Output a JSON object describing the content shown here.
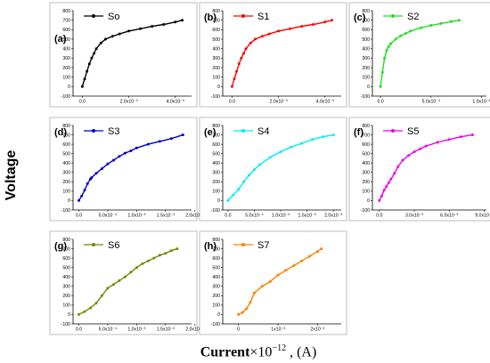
{
  "figure": {
    "ylabel": "Voltage",
    "xlabel_bold": "Current",
    "xlabel_rest": "×10",
    "xlabel_exp": "−12",
    "xlabel_unit": " , (A)"
  },
  "chart_data": [
    {
      "type": "line",
      "panel": "(a)",
      "series": [
        {
          "name": "So",
          "color": "#000000",
          "x": [
            0,
            0.0001,
            0.0002,
            0.0003,
            0.0004,
            0.0005,
            0.0006,
            0.0008,
            0.001,
            0.0013,
            0.0016,
            0.002,
            0.0025,
            0.003,
            0.0035,
            0.004,
            0.0043
          ],
          "y": [
            0,
            80,
            160,
            240,
            300,
            350,
            400,
            460,
            500,
            530,
            555,
            585,
            610,
            635,
            655,
            680,
            700
          ]
        }
      ],
      "xticks": [
        "0.0",
        "2.0x10⁻³",
        "4.0x10⁻³"
      ],
      "xtick_values": [
        0,
        0.002,
        0.004
      ],
      "xlim": [
        -0.0004,
        0.0047
      ],
      "yticks": [
        "-100",
        "0",
        "100",
        "200",
        "300",
        "400",
        "500",
        "600",
        "700",
        "800"
      ],
      "ylim": [
        -100,
        800
      ]
    },
    {
      "type": "line",
      "panel": "(b)",
      "series": [
        {
          "name": "S1",
          "color": "#ff0000",
          "x": [
            0,
            0.0001,
            0.0002,
            0.0003,
            0.0004,
            0.0005,
            0.0006,
            0.0008,
            0.001,
            0.0013,
            0.0016,
            0.002,
            0.0025,
            0.003,
            0.0035,
            0.004,
            0.0043
          ],
          "y": [
            0,
            80,
            160,
            240,
            300,
            350,
            400,
            460,
            500,
            530,
            555,
            585,
            610,
            635,
            655,
            680,
            700
          ]
        }
      ],
      "xticks": [
        "0.0",
        "2.0x10⁻³",
        "4.0x10⁻³"
      ],
      "xtick_values": [
        0,
        0.002,
        0.004
      ],
      "xlim": [
        -0.0004,
        0.0047
      ],
      "yticks": [
        "-100",
        "0",
        "100",
        "200",
        "300",
        "400",
        "500",
        "600",
        "700",
        "800"
      ],
      "ylim": [
        -100,
        800
      ]
    },
    {
      "type": "line",
      "panel": "(c)",
      "series": [
        {
          "name": "S2",
          "color": "#22dd22",
          "x": [
            0,
            0.0002,
            0.0004,
            0.0006,
            0.0008,
            0.001,
            0.0015,
            0.002,
            0.0025,
            0.003,
            0.004,
            0.005,
            0.006,
            0.007,
            0.0078
          ],
          "y": [
            0,
            150,
            300,
            380,
            420,
            450,
            500,
            535,
            560,
            585,
            620,
            645,
            665,
            685,
            700
          ]
        }
      ],
      "xticks": [
        "0.0",
        "5.0x10⁻³",
        "1.0x10⁻²"
      ],
      "xtick_values": [
        0,
        0.005,
        0.01
      ],
      "xlim": [
        -0.0008,
        0.0105
      ],
      "yticks": [
        "-100",
        "0",
        "100",
        "200",
        "300",
        "400",
        "500",
        "600",
        "700",
        "800"
      ],
      "ylim": [
        -100,
        800
      ]
    },
    {
      "type": "line",
      "panel": "(d)",
      "series": [
        {
          "name": "S3",
          "color": "#0000cc",
          "x": [
            0,
            5e-05,
            0.0001,
            0.00015,
            0.0002,
            0.00022,
            0.0003,
            0.0004,
            0.0005,
            0.0006,
            0.0007,
            0.0008,
            0.0009,
            0.001,
            0.0012,
            0.0014,
            0.0016,
            0.0018
          ],
          "y": [
            0,
            50,
            110,
            180,
            230,
            245,
            290,
            340,
            390,
            430,
            470,
            505,
            530,
            560,
            600,
            630,
            660,
            700
          ]
        }
      ],
      "xticks": [
        "0.0",
        "5.0x10⁻⁴",
        "1.0x10⁻³",
        "1.5x10⁻³",
        "2.0x10⁻³"
      ],
      "xtick_values": [
        0,
        0.0005,
        0.001,
        0.0015,
        0.002
      ],
      "xlim": [
        -0.0001,
        0.00195
      ],
      "yticks": [
        "-100",
        "0",
        "100",
        "200",
        "300",
        "400",
        "500",
        "600",
        "700",
        "800"
      ],
      "ylim": [
        -100,
        800
      ]
    },
    {
      "type": "line",
      "panel": "(e)",
      "series": [
        {
          "name": "S4",
          "color": "#00eeee",
          "x": [
            0,
            0.0001,
            0.0002,
            0.0003,
            0.0004,
            0.0005,
            0.0006,
            0.0008,
            0.001,
            0.0012,
            0.0014,
            0.0016,
            0.0018,
            0.002
          ],
          "y": [
            0,
            60,
            120,
            200,
            270,
            330,
            380,
            460,
            520,
            570,
            610,
            650,
            680,
            700
          ]
        }
      ],
      "xticks": [
        "0.0",
        "5.0x10⁻⁴",
        "1.0x10⁻³",
        "1.5x10⁻³",
        "2.0x10⁻³"
      ],
      "xtick_values": [
        0,
        0.0005,
        0.001,
        0.0015,
        0.002
      ],
      "xlim": [
        -0.0001,
        0.00215
      ],
      "yticks": [
        "-100",
        "0",
        "100",
        "200",
        "300",
        "400",
        "500",
        "600",
        "700",
        "800"
      ],
      "ylim": [
        -100,
        800
      ]
    },
    {
      "type": "line",
      "panel": "(f)",
      "series": [
        {
          "name": "S5",
          "color": "#ee00ee",
          "x": [
            0,
            0.0002,
            0.0004,
            0.0006,
            0.0008,
            0.001,
            0.0013,
            0.0016,
            0.002,
            0.0025,
            0.003,
            0.0035,
            0.004,
            0.005,
            0.006,
            0.007,
            0.008
          ],
          "y": [
            0,
            50,
            110,
            150,
            190,
            230,
            290,
            360,
            430,
            480,
            520,
            550,
            580,
            620,
            650,
            680,
            700
          ]
        }
      ],
      "xticks": [
        "0.0",
        "3.0x10⁻³",
        "6.0x10⁻³",
        "9.0x10⁻³"
      ],
      "xtick_values": [
        0,
        0.003,
        0.006,
        0.009
      ],
      "xlim": [
        -0.0006,
        0.0092
      ],
      "yticks": [
        "-100",
        "0",
        "100",
        "200",
        "300",
        "400",
        "500",
        "600",
        "700",
        "800"
      ],
      "ylim": [
        -100,
        800
      ]
    },
    {
      "type": "line",
      "panel": "(g)",
      "series": [
        {
          "name": "S6",
          "color": "#6e8b00",
          "x": [
            0,
            0.0001,
            0.0002,
            0.0003,
            0.0004,
            0.0005,
            0.0006,
            0.0007,
            0.0008,
            0.0009,
            0.001,
            0.0011,
            0.0012,
            0.0013,
            0.0014,
            0.0015,
            0.0016,
            0.0017
          ],
          "y": [
            0,
            30,
            70,
            120,
            200,
            280,
            320,
            360,
            400,
            450,
            500,
            540,
            570,
            600,
            630,
            650,
            680,
            700
          ]
        }
      ],
      "xticks": [
        "0.0",
        "5.0x10⁻⁴",
        "1.0x10⁻³",
        "1.5x10⁻³",
        "2.0x10⁻³"
      ],
      "xtick_values": [
        0,
        0.0005,
        0.001,
        0.0015,
        0.002
      ],
      "xlim": [
        -0.0001,
        0.00195
      ],
      "yticks": [
        "-100",
        "0",
        "100",
        "200",
        "300",
        "400",
        "500",
        "600",
        "700",
        "800"
      ],
      "ylim": [
        -100,
        800
      ]
    },
    {
      "type": "line",
      "panel": "(h)",
      "series": [
        {
          "name": "S7",
          "color": "#ff8000",
          "x": [
            0,
            0.0001,
            0.0002,
            0.0003,
            0.0004,
            0.0006,
            0.0008,
            0.001,
            0.0012,
            0.0014,
            0.0016,
            0.0018,
            0.002,
            0.0021
          ],
          "y": [
            0,
            20,
            60,
            130,
            230,
            300,
            350,
            420,
            470,
            520,
            570,
            620,
            670,
            700
          ]
        }
      ],
      "xticks": [
        "0",
        "1x10⁻³",
        "2x10⁻³"
      ],
      "xtick_values": [
        0,
        0.001,
        0.002
      ],
      "xlim": [
        -0.0004,
        0.0026
      ],
      "yticks": [
        "-100",
        "0",
        "100",
        "200",
        "300",
        "400",
        "500",
        "600",
        "700",
        "800"
      ],
      "ylim": [
        -100,
        800
      ]
    }
  ]
}
